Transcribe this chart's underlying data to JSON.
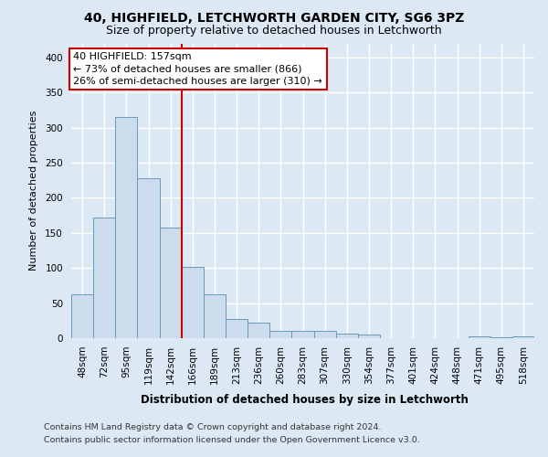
{
  "title1": "40, HIGHFIELD, LETCHWORTH GARDEN CITY, SG6 3PZ",
  "title2": "Size of property relative to detached houses in Letchworth",
  "xlabel": "Distribution of detached houses by size in Letchworth",
  "ylabel": "Number of detached properties",
  "categories": [
    "48sqm",
    "72sqm",
    "95sqm",
    "119sqm",
    "142sqm",
    "166sqm",
    "189sqm",
    "213sqm",
    "236sqm",
    "260sqm",
    "283sqm",
    "307sqm",
    "330sqm",
    "354sqm",
    "377sqm",
    "401sqm",
    "424sqm",
    "448sqm",
    "471sqm",
    "495sqm",
    "518sqm"
  ],
  "values": [
    62,
    172,
    315,
    228,
    157,
    102,
    62,
    28,
    22,
    10,
    10,
    10,
    6,
    5,
    0,
    0,
    0,
    0,
    3,
    1,
    2
  ],
  "bar_color": "#ccdcec",
  "bar_edge_color": "#6699bb",
  "background_color": "#dce9f5",
  "plot_background_color": "#dce9f5",
  "grid_color": "#ffffff",
  "property_size": 157,
  "property_bin_low": 142,
  "property_bin_high": 166,
  "property_bin_idx_low": 4,
  "property_line_color": "#cc0000",
  "annotation_line1": "40 HIGHFIELD: 157sqm",
  "annotation_line2": "← 73% of detached houses are smaller (866)",
  "annotation_line3": "26% of semi-detached houses are larger (310) →",
  "annotation_box_edge_color": "#cc0000",
  "annotation_box_face_color": "#ffffff",
  "ylim_max": 420,
  "ytick_interval": 50,
  "footer1": "Contains HM Land Registry data © Crown copyright and database right 2024.",
  "footer2": "Contains public sector information licensed under the Open Government Licence v3.0.",
  "title1_fontsize": 10,
  "title2_fontsize": 9,
  "ylabel_fontsize": 8,
  "tick_fontsize": 7.5,
  "annotation_fontsize": 8,
  "footer_fontsize": 6.8,
  "xlabel_fontsize": 8.5
}
